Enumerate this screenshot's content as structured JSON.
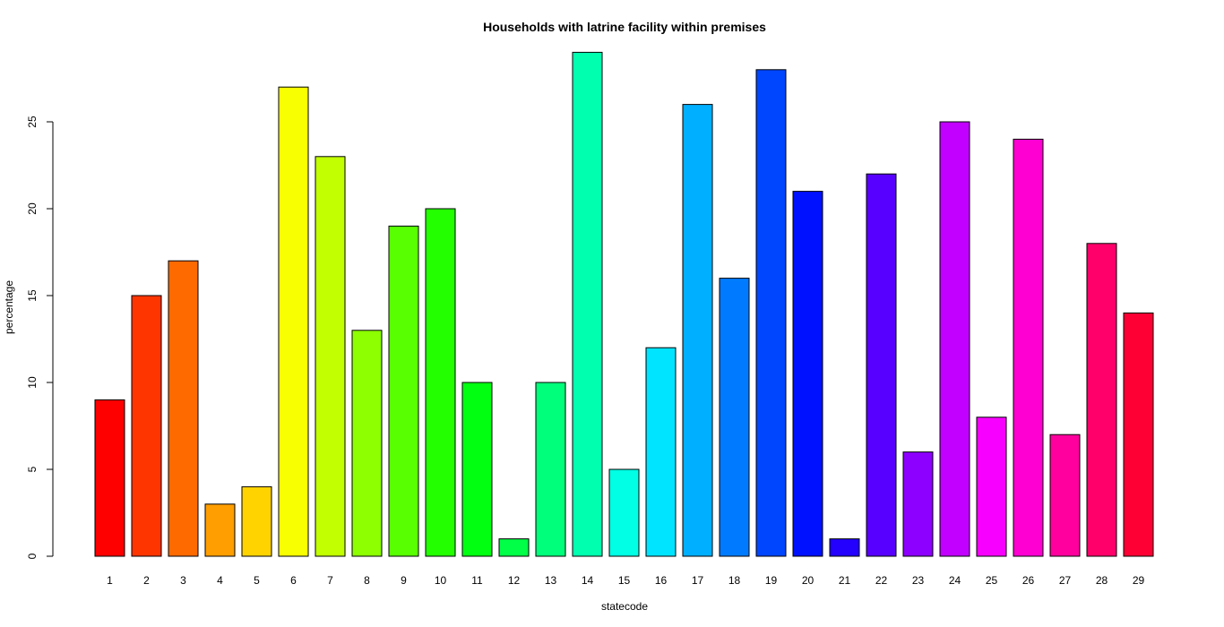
{
  "chart_data": {
    "type": "bar",
    "title": "Households with latrine facility within premises",
    "xlabel": "statecode",
    "ylabel": "percentage",
    "categories": [
      "1",
      "2",
      "3",
      "4",
      "5",
      "6",
      "7",
      "8",
      "9",
      "10",
      "11",
      "12",
      "13",
      "14",
      "15",
      "16",
      "17",
      "18",
      "19",
      "20",
      "21",
      "22",
      "23",
      "24",
      "25",
      "26",
      "27",
      "28",
      "29"
    ],
    "values": [
      9,
      15,
      17,
      3,
      4,
      27,
      23,
      13,
      19,
      20,
      10,
      1,
      10,
      29,
      5,
      12,
      26,
      16,
      28,
      21,
      1,
      22,
      6,
      25,
      8,
      24,
      7,
      18,
      14
    ],
    "yticks": [
      0,
      5,
      10,
      15,
      20,
      25
    ],
    "ylim": [
      0,
      29
    ],
    "grid": false,
    "legend": "none",
    "colors": [
      "#FF0000",
      "#FF3500",
      "#FF6A00",
      "#FF9E00",
      "#FFD300",
      "#F7FF00",
      "#C2FF00",
      "#8DFF00",
      "#58FF00",
      "#24FF00",
      "#00FF11",
      "#00FF46",
      "#00FF7B",
      "#00FFAF",
      "#00FFE4",
      "#00E4FF",
      "#00AFFF",
      "#007BFF",
      "#0046FF",
      "#0011FF",
      "#2400FF",
      "#5800FF",
      "#8D00FF",
      "#C200FF",
      "#F700FF",
      "#FF00D3",
      "#FF009E",
      "#FF006A",
      "#FF0035"
    ]
  }
}
